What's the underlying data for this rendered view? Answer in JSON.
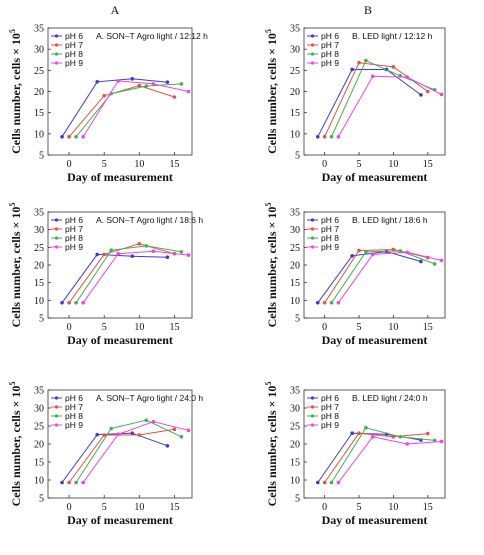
{
  "columns": [
    "A",
    "B"
  ],
  "chart_data": [
    {
      "type": "line",
      "title": "A. SON–T Agro light / 12:12 h",
      "xlabel": "Day of measurement",
      "ylabel_main": "Cells number, cells × 10",
      "ylabel_sup": "5",
      "xlim": [
        -3,
        17.5
      ],
      "ylim": [
        5,
        35
      ],
      "xticks": [
        0,
        5,
        10,
        15
      ],
      "yticks": [
        5,
        10,
        15,
        20,
        25,
        30,
        35
      ],
      "grid": false,
      "legend": "top-left",
      "series": [
        {
          "name": "pH 6",
          "color": "#3b3bd9",
          "x": [
            -1,
            4,
            9,
            14
          ],
          "values": [
            9.3,
            22.3,
            23.0,
            22.2
          ]
        },
        {
          "name": "pH 7",
          "color": "#e8533f",
          "x": [
            0,
            5,
            10,
            15
          ],
          "values": [
            9.3,
            19.0,
            21.4,
            18.7
          ]
        },
        {
          "name": "pH 8",
          "color": "#3fb34f",
          "x": [
            1,
            6,
            11,
            16
          ],
          "values": [
            9.3,
            19.5,
            21.3,
            21.8
          ]
        },
        {
          "name": "pH 9",
          "color": "#ee44ee",
          "x": [
            2,
            7,
            12,
            17
          ],
          "values": [
            9.3,
            22.5,
            21.8,
            20.0
          ]
        }
      ]
    },
    {
      "type": "line",
      "title": "B. LED light / 12:12 h",
      "xlabel": "Day of measurement",
      "ylabel_main": "Cells number, cells × 10",
      "ylabel_sup": "5",
      "xlim": [
        -3,
        17.5
      ],
      "ylim": [
        5,
        35
      ],
      "xticks": [
        0,
        5,
        10,
        15
      ],
      "yticks": [
        5,
        10,
        15,
        20,
        25,
        30,
        35
      ],
      "grid": false,
      "legend": "top-left",
      "series": [
        {
          "name": "pH 6",
          "color": "#3b3bd9",
          "x": [
            -1,
            4,
            9,
            14
          ],
          "values": [
            9.3,
            25.2,
            25.2,
            19.2
          ]
        },
        {
          "name": "pH 7",
          "color": "#e8533f",
          "x": [
            0,
            5,
            10,
            15
          ],
          "values": [
            9.3,
            26.8,
            25.8,
            20.0
          ]
        },
        {
          "name": "pH 8",
          "color": "#3fb34f",
          "x": [
            1,
            6,
            11,
            16
          ],
          "values": [
            9.3,
            27.3,
            23.7,
            20.4
          ]
        },
        {
          "name": "pH 9",
          "color": "#ee44ee",
          "x": [
            2,
            7,
            12,
            17
          ],
          "values": [
            9.3,
            23.6,
            23.4,
            19.3
          ]
        }
      ]
    },
    {
      "type": "line",
      "title": "A. SON–T Agro light / 18:6 h",
      "xlabel": "Day of measurement",
      "ylabel_main": "Cells number, cells × 10",
      "ylabel_sup": "5",
      "xlim": [
        -3,
        17.5
      ],
      "ylim": [
        5,
        35
      ],
      "xticks": [
        0,
        5,
        10,
        15
      ],
      "yticks": [
        5,
        10,
        15,
        20,
        25,
        30,
        35
      ],
      "grid": false,
      "legend": "top-left",
      "series": [
        {
          "name": "pH 6",
          "color": "#3b3bd9",
          "x": [
            -1,
            4,
            9,
            14
          ],
          "values": [
            9.3,
            23.0,
            22.5,
            22.2
          ]
        },
        {
          "name": "pH 7",
          "color": "#e8533f",
          "x": [
            0,
            5,
            10,
            15
          ],
          "values": [
            9.3,
            23.0,
            26.0,
            23.2
          ]
        },
        {
          "name": "pH 8",
          "color": "#3fb34f",
          "x": [
            1,
            6,
            11,
            16
          ],
          "values": [
            9.3,
            24.2,
            25.4,
            23.7
          ]
        },
        {
          "name": "pH 9",
          "color": "#ee44ee",
          "x": [
            2,
            7,
            12,
            17
          ],
          "values": [
            9.3,
            23.2,
            23.9,
            22.8
          ]
        }
      ]
    },
    {
      "type": "line",
      "title": "B. LED light / 18:6 h",
      "xlabel": "Day of measurement",
      "ylabel_main": "Cells number, cells × 10",
      "ylabel_sup": "5",
      "xlim": [
        -3,
        17.5
      ],
      "ylim": [
        5,
        35
      ],
      "xticks": [
        0,
        5,
        10,
        15
      ],
      "yticks": [
        5,
        10,
        15,
        20,
        25,
        30,
        35
      ],
      "grid": false,
      "legend": "top-left",
      "series": [
        {
          "name": "pH 6",
          "color": "#3b3bd9",
          "x": [
            -1,
            4,
            9,
            14
          ],
          "values": [
            9.3,
            22.6,
            23.8,
            21.0
          ]
        },
        {
          "name": "pH 7",
          "color": "#e8533f",
          "x": [
            0,
            5,
            10,
            15
          ],
          "values": [
            9.3,
            24.1,
            24.4,
            22.1
          ]
        },
        {
          "name": "pH 8",
          "color": "#3fb34f",
          "x": [
            1,
            6,
            11,
            16
          ],
          "values": [
            9.3,
            23.7,
            24.0,
            20.3
          ]
        },
        {
          "name": "pH 9",
          "color": "#ee44ee",
          "x": [
            2,
            7,
            12,
            17
          ],
          "values": [
            9.3,
            23.0,
            23.6,
            21.3
          ]
        }
      ]
    },
    {
      "type": "line",
      "title": "A. SON–T Agro light / 24:0 h",
      "xlabel": "Day of measurement",
      "ylabel_main": "Cells number, cells × 10",
      "ylabel_sup": "5",
      "xlim": [
        -3,
        17.5
      ],
      "ylim": [
        5,
        35
      ],
      "xticks": [
        0,
        5,
        10,
        15
      ],
      "yticks": [
        5,
        10,
        15,
        20,
        25,
        30,
        35
      ],
      "grid": false,
      "legend": "top-left",
      "series": [
        {
          "name": "pH 6",
          "color": "#3b3bd9",
          "x": [
            -1,
            4,
            9,
            14
          ],
          "values": [
            9.3,
            22.6,
            23.0,
            19.5
          ]
        },
        {
          "name": "pH 7",
          "color": "#e8533f",
          "x": [
            0,
            5,
            10,
            15
          ],
          "values": [
            9.3,
            22.5,
            22.5,
            24.1
          ]
        },
        {
          "name": "pH 8",
          "color": "#3fb34f",
          "x": [
            1,
            6,
            11,
            16
          ],
          "values": [
            9.3,
            24.3,
            26.6,
            22.0
          ]
        },
        {
          "name": "pH 9",
          "color": "#ee44ee",
          "x": [
            2,
            7,
            12,
            17
          ],
          "values": [
            9.3,
            22.7,
            26.2,
            23.8
          ]
        }
      ]
    },
    {
      "type": "line",
      "title": "B. LED light / 24:0 h",
      "xlabel": "Day of measurement",
      "ylabel_main": "Cells number, cells × 10",
      "ylabel_sup": "5",
      "xlim": [
        -3,
        17.5
      ],
      "ylim": [
        5,
        35
      ],
      "xticks": [
        0,
        5,
        10,
        15
      ],
      "yticks": [
        5,
        10,
        15,
        20,
        25,
        30,
        35
      ],
      "grid": false,
      "legend": "top-left",
      "series": [
        {
          "name": "pH 6",
          "color": "#3b3bd9",
          "x": [
            -1,
            4,
            9,
            14
          ],
          "values": [
            9.3,
            23.0,
            22.7,
            21.1
          ]
        },
        {
          "name": "pH 7",
          "color": "#e8533f",
          "x": [
            0,
            5,
            10,
            15
          ],
          "values": [
            9.3,
            23.0,
            22.0,
            22.9
          ]
        },
        {
          "name": "pH 8",
          "color": "#3fb34f",
          "x": [
            1,
            6,
            11,
            16
          ],
          "values": [
            9.3,
            24.5,
            22.0,
            21.0
          ]
        },
        {
          "name": "pH 9",
          "color": "#ee44ee",
          "x": [
            2,
            7,
            12,
            17
          ],
          "values": [
            9.3,
            22.0,
            20.0,
            20.7
          ]
        }
      ]
    }
  ]
}
